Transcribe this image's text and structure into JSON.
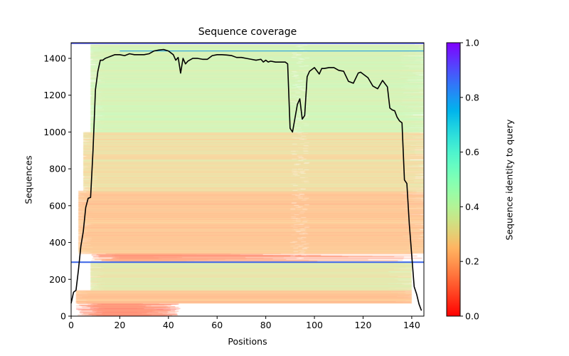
{
  "chart_data": {
    "type": "heatmap",
    "title": "Sequence coverage",
    "xlabel": "Positions",
    "ylabel": "Sequences",
    "xlim": [
      0,
      145
    ],
    "ylim": [
      0,
      1485
    ],
    "xticks": [
      0,
      20,
      40,
      60,
      80,
      100,
      120,
      140
    ],
    "yticks": [
      0,
      200,
      400,
      600,
      800,
      1000,
      1200,
      1400
    ],
    "colorbar": {
      "label": "Sequence identity to query",
      "range": [
        0,
        1
      ],
      "ticks": [
        "0.0",
        "0.2",
        "0.4",
        "0.6",
        "0.8",
        "1.0"
      ],
      "colormap": "rainbow_r"
    },
    "coverage_line": {
      "name": "coverage",
      "color": "#000000",
      "x": [
        0,
        1,
        2,
        3,
        4,
        5,
        6,
        7,
        8,
        9,
        10,
        11,
        12,
        13,
        14,
        15,
        16,
        18,
        20,
        22,
        24,
        26,
        28,
        30,
        32,
        34,
        36,
        38,
        40,
        42,
        43,
        44,
        45,
        46,
        47,
        48,
        50,
        52,
        54,
        56,
        58,
        60,
        62,
        64,
        66,
        68,
        70,
        72,
        74,
        76,
        78,
        79,
        80,
        81,
        82,
        84,
        86,
        88,
        89,
        90,
        91,
        93,
        94,
        95,
        96,
        97,
        98,
        99,
        100,
        102,
        103,
        104,
        106,
        108,
        110,
        112,
        114,
        116,
        118,
        119,
        120,
        122,
        124,
        126,
        128,
        130,
        131,
        132,
        133,
        134,
        135,
        136,
        137,
        138,
        139,
        140,
        141,
        142,
        143,
        144
      ],
      "y": [
        70,
        130,
        140,
        250,
        380,
        460,
        590,
        640,
        645,
        900,
        1230,
        1330,
        1390,
        1390,
        1400,
        1405,
        1410,
        1420,
        1420,
        1415,
        1425,
        1420,
        1420,
        1420,
        1425,
        1440,
        1445,
        1448,
        1440,
        1420,
        1390,
        1405,
        1320,
        1400,
        1370,
        1385,
        1400,
        1400,
        1395,
        1395,
        1415,
        1420,
        1420,
        1418,
        1415,
        1405,
        1405,
        1400,
        1395,
        1390,
        1395,
        1380,
        1390,
        1380,
        1385,
        1380,
        1380,
        1380,
        1370,
        1020,
        1000,
        1150,
        1180,
        1070,
        1090,
        1300,
        1330,
        1340,
        1350,
        1315,
        1345,
        1345,
        1350,
        1350,
        1335,
        1330,
        1275,
        1265,
        1320,
        1325,
        1315,
        1295,
        1250,
        1235,
        1280,
        1245,
        1130,
        1120,
        1115,
        1080,
        1060,
        1050,
        740,
        720,
        500,
        330,
        160,
        120,
        65,
        30
      ]
    },
    "reference_lines": [
      {
        "y": 293,
        "color": "#3a64e6",
        "xrange": [
          0,
          145
        ]
      },
      {
        "y": 1440,
        "color": "#1a96e0",
        "xrange": [
          20,
          145
        ]
      },
      {
        "y": 1482,
        "color": "#4a54e8",
        "xrange": [
          0,
          145
        ]
      }
    ],
    "bands": [
      {
        "y0": 0,
        "y1": 70,
        "identity": 0.1,
        "x0": 2,
        "x1": 45,
        "jitter": 0.06
      },
      {
        "y0": 70,
        "y1": 140,
        "identity": 0.22,
        "x0": 2,
        "x1": 140,
        "jitter": 0.05
      },
      {
        "y0": 140,
        "y1": 290,
        "identity": 0.33,
        "x0": 8,
        "x1": 140,
        "jitter": 0.06
      },
      {
        "y0": 297,
        "y1": 340,
        "identity": 0.14,
        "x0": 8,
        "x1": 145,
        "jitter": 0.06
      },
      {
        "y0": 340,
        "y1": 680,
        "identity": 0.23,
        "x0": 3,
        "x1": 145,
        "jitter": 0.05
      },
      {
        "y0": 680,
        "y1": 1000,
        "identity": 0.3,
        "x0": 5,
        "x1": 145,
        "jitter": 0.06
      },
      {
        "y0": 1000,
        "y1": 1475,
        "identity": 0.38,
        "x0": 8,
        "x1": 145,
        "jitter": 0.05
      }
    ]
  }
}
